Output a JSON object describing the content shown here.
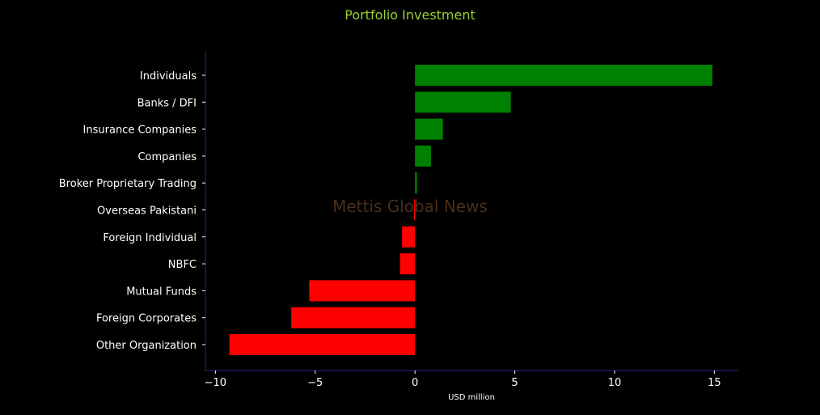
{
  "chart_data": {
    "type": "bar",
    "orientation": "horizontal",
    "title": "Portfolio Investment",
    "xlabel": "USD million",
    "ylabel": "",
    "categories": [
      "Individuals",
      "Banks / DFI",
      "Insurance Companies",
      "Companies",
      "Broker Proprietary Trading",
      "Overseas Pakistani",
      "Foreign Individual",
      "NBFC",
      "Mutual Funds",
      "Foreign Corporates ",
      "Other Organization"
    ],
    "values": [
      14.9,
      4.8,
      1.4,
      0.8,
      0.1,
      -0.05,
      -0.65,
      -0.75,
      -5.3,
      -6.2,
      -9.3
    ],
    "xlim": [
      -10.5,
      16.2
    ],
    "xticks": [
      -10,
      -5,
      0,
      5,
      10,
      15
    ],
    "xtick_labels": [
      "−10",
      "−5",
      "0",
      "5",
      "10",
      "15"
    ],
    "grid": false,
    "legend": "none",
    "colors": {
      "positive": "#008000",
      "negative": "#ff0000",
      "title": "#9acd32",
      "axis": "#2a2a8a",
      "text": "#ffffff",
      "watermark": "#4a2e1a"
    },
    "watermark": "Mettis Global News"
  }
}
